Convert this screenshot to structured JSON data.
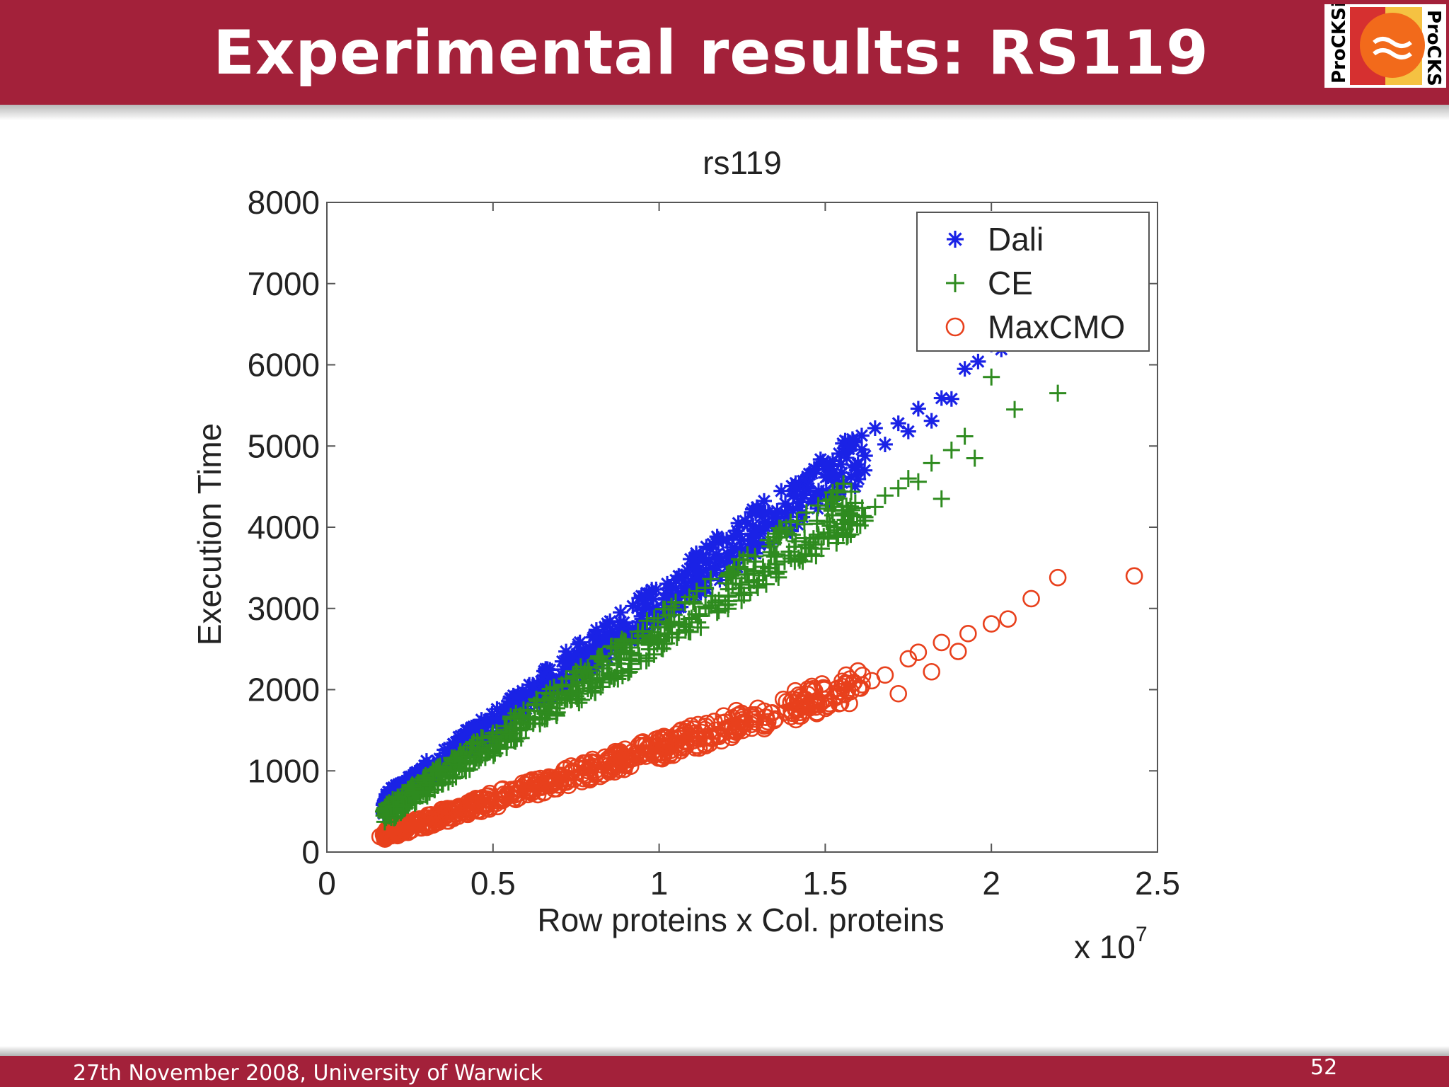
{
  "slide": {
    "title": "Experimental results: RS119",
    "footer": "27th November 2008, University of Warwick",
    "page_number": "52"
  },
  "logo": {
    "text": "ProCKSi",
    "colors": {
      "orange": "#f26a1b",
      "red": "#d3202f",
      "yellow": "#f5c242"
    }
  },
  "chart_data": {
    "type": "scatter",
    "title": "rs119",
    "xlabel": "Row proteins x Col. proteins",
    "ylabel": "Execution Time",
    "x_multiplier_base": "x 10",
    "x_multiplier_exp": "7",
    "xlim": [
      0,
      2.5
    ],
    "ylim": [
      0,
      8000
    ],
    "xticks": [
      0,
      0.5,
      1,
      1.5,
      2,
      2.5
    ],
    "xtick_labels": [
      "0",
      "0.5",
      "1",
      "1.5",
      "2",
      "2.5"
    ],
    "yticks": [
      0,
      1000,
      2000,
      3000,
      4000,
      5000,
      6000,
      7000,
      8000
    ],
    "ytick_labels": [
      "0",
      "1000",
      "2000",
      "3000",
      "4000",
      "5000",
      "6000",
      "7000",
      "8000"
    ],
    "legend_position": "top-right",
    "series": [
      {
        "name": "Dali",
        "marker": "asterisk",
        "color": "#1a22e6",
        "trend": {
          "slope": 3000,
          "intercept": 0
        },
        "x": [
          0.17,
          0.2,
          0.23,
          0.26,
          0.29,
          0.32,
          0.35,
          0.38,
          0.42,
          0.45,
          0.48,
          0.52,
          0.55,
          0.58,
          0.62,
          0.65,
          0.68,
          0.72,
          0.75,
          0.78,
          0.82,
          0.85,
          0.88,
          0.92,
          0.95,
          0.98,
          1.02,
          1.05,
          1.08,
          1.12,
          1.15,
          1.18,
          1.22,
          1.25,
          1.28,
          1.32,
          1.35,
          1.38,
          1.42,
          1.45,
          1.48,
          1.52,
          1.55,
          1.58,
          1.62,
          1.65,
          1.68,
          1.72,
          1.75,
          1.78,
          1.82,
          1.85,
          1.88,
          1.92,
          1.96,
          2.0,
          2.03
        ],
        "y": [
          480,
          600,
          720,
          830,
          960,
          1010,
          1140,
          1330,
          1290,
          1500,
          1450,
          1630,
          1590,
          1780,
          2060,
          1980,
          2120,
          2470,
          2260,
          2430,
          2580,
          2600,
          2750,
          2760,
          2980,
          2980,
          3110,
          3350,
          3280,
          3480,
          3600,
          3620,
          3750,
          3700,
          3920,
          4050,
          4120,
          4290,
          4250,
          4480,
          4450,
          4650,
          4670,
          5010,
          4880,
          5220,
          5020,
          5280,
          5180,
          5460,
          5310,
          5590,
          5580,
          5950,
          6040,
          6250,
          6190
        ]
      },
      {
        "name": "CE",
        "marker": "plus",
        "color": "#2e8b1f",
        "trend": {
          "slope": 2700,
          "intercept": 0
        },
        "x": [
          0.18,
          0.2,
          0.23,
          0.26,
          0.29,
          0.31,
          0.34,
          0.37,
          0.4,
          0.43,
          0.46,
          0.49,
          0.52,
          0.55,
          0.58,
          0.61,
          0.64,
          0.67,
          0.7,
          0.73,
          0.76,
          0.79,
          0.82,
          0.85,
          0.88,
          0.91,
          0.94,
          0.97,
          1.0,
          1.03,
          1.06,
          1.09,
          1.12,
          1.15,
          1.18,
          1.21,
          1.24,
          1.27,
          1.3,
          1.33,
          1.36,
          1.39,
          1.42,
          1.45,
          1.48,
          1.51,
          1.55,
          1.58,
          1.62,
          1.65,
          1.68,
          1.72,
          1.75,
          1.78,
          1.82,
          1.85,
          1.88,
          1.92,
          1.95,
          2.0,
          2.07,
          2.2
        ],
        "y": [
          450,
          560,
          560,
          760,
          740,
          820,
          1000,
          950,
          1080,
          1180,
          1210,
          1360,
          1290,
          1450,
          1500,
          1660,
          1640,
          1720,
          1870,
          1950,
          1950,
          2080,
          2140,
          2200,
          2370,
          2380,
          2420,
          2600,
          2620,
          2690,
          2790,
          2870,
          2930,
          3000,
          3100,
          3090,
          3190,
          3320,
          3350,
          3500,
          3450,
          3650,
          3620,
          3740,
          3880,
          3860,
          4040,
          4210,
          4080,
          4250,
          4390,
          4480,
          4600,
          4560,
          4790,
          4350,
          4950,
          5120,
          4850,
          5850,
          5450,
          5650
        ]
      },
      {
        "name": "MaxCMO",
        "marker": "circle",
        "color": "#e8401c",
        "trend": {
          "slope": 1280,
          "intercept": 0
        },
        "x": [
          0.16,
          0.18,
          0.21,
          0.24,
          0.27,
          0.3,
          0.33,
          0.36,
          0.39,
          0.42,
          0.45,
          0.48,
          0.51,
          0.54,
          0.57,
          0.6,
          0.63,
          0.66,
          0.69,
          0.72,
          0.75,
          0.78,
          0.81,
          0.84,
          0.87,
          0.9,
          0.93,
          0.96,
          0.99,
          1.02,
          1.05,
          1.08,
          1.11,
          1.14,
          1.17,
          1.2,
          1.23,
          1.26,
          1.29,
          1.32,
          1.35,
          1.38,
          1.41,
          1.44,
          1.47,
          1.5,
          1.53,
          1.56,
          1.6,
          1.64,
          1.68,
          1.72,
          1.75,
          1.78,
          1.82,
          1.85,
          1.9,
          1.93,
          2.0,
          2.05,
          2.12,
          2.2,
          2.43
        ],
        "y": [
          190,
          250,
          270,
          300,
          330,
          420,
          370,
          460,
          540,
          520,
          610,
          640,
          600,
          700,
          780,
          750,
          830,
          880,
          860,
          900,
          980,
          950,
          1010,
          1090,
          1100,
          1140,
          1210,
          1180,
          1260,
          1300,
          1320,
          1370,
          1400,
          1420,
          1500,
          1520,
          1490,
          1580,
          1600,
          1660,
          1640,
          1720,
          1760,
          1740,
          1830,
          1880,
          1900,
          1940,
          2020,
          2110,
          2180,
          1950,
          2380,
          2460,
          2220,
          2580,
          2470,
          2690,
          2810,
          2870,
          3120,
          3380,
          3400
        ]
      }
    ]
  }
}
